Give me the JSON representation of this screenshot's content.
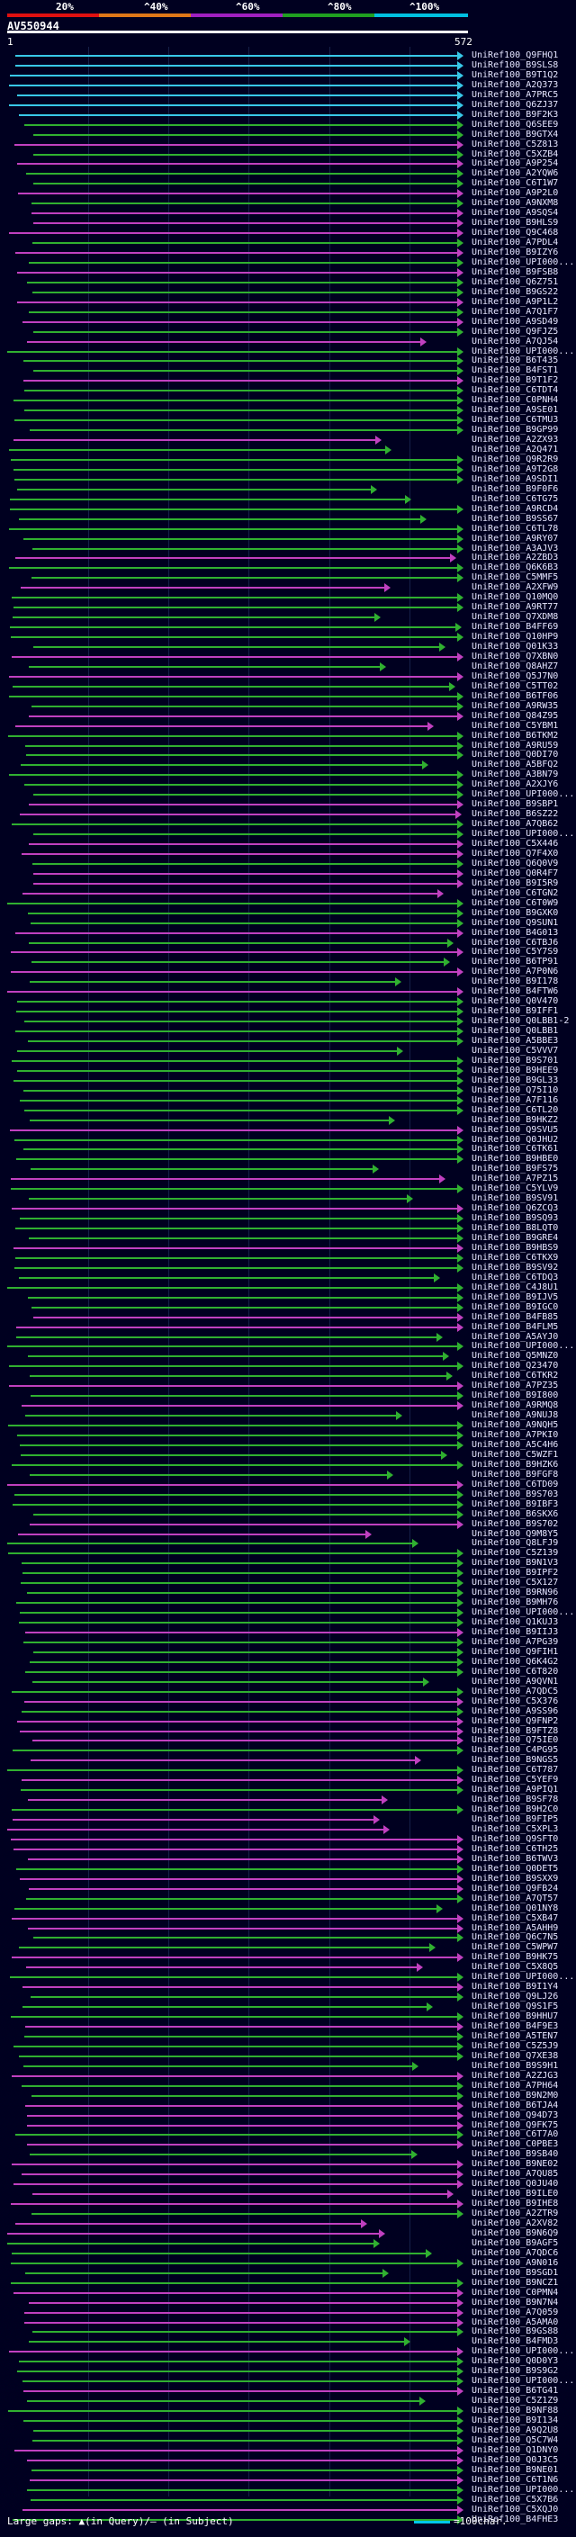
{
  "scale": {
    "ticks": [
      "20%",
      "^40%",
      "^60%",
      "^80%",
      "^100%"
    ],
    "colors": [
      "#e01010",
      "#e07818",
      "#a020c0",
      "#20a020",
      "#00c0e0"
    ]
  },
  "query": {
    "name": "AV550944",
    "start": "1",
    "end": "572"
  },
  "legend": {
    "left": "Large gaps: ▲(in Query)/– (in Subject)",
    "right": "=100char."
  },
  "hits": [
    "UniRef100_Q9FHQ1",
    "UniRef100_B9SLS8",
    "UniRef100_B9T1Q2",
    "UniRef100_A2Q373",
    "UniRef100_A7PRC5",
    "UniRef100_Q6ZJ37",
    "UniRef100_B9F2K3",
    "UniRef100_Q6SEE9",
    "UniRef100_B9GTX4",
    "UniRef100_C5Z813",
    "UniRef100_C5XZB4",
    "UniRef100_A9P254",
    "UniRef100_A2YQW6",
    "UniRef100_C6T1W7",
    "UniRef100_A9P2L0",
    "UniRef100_A9NXM8",
    "UniRef100_A9SQS4",
    "UniRef100_B9HLS9",
    "UniRef100_Q9C468",
    "UniRef100_A7PDL4",
    "UniRef100_B9IZY6",
    "UniRef100_UPI000...",
    "UniRef100_B9FSB8",
    "UniRef100_Q6Z751",
    "UniRef100_B9GS22",
    "UniRef100_A9P1L2",
    "UniRef100_A7Q1F7",
    "UniRef100_A9SD49",
    "UniRef100_Q9FJZ5",
    "UniRef100_A7QJ54",
    "UniRef100_UPI000...",
    "UniRef100_B6T435",
    "UniRef100_B4FST1",
    "UniRef100_B9T1F2",
    "UniRef100_C6TDT4",
    "UniRef100_C0PNH4",
    "UniRef100_A9SE01",
    "UniRef100_C6TMU3",
    "UniRef100_B9GP99",
    "UniRef100_A2ZX93",
    "UniRef100_A2Q471",
    "UniRef100_Q9R2R9",
    "UniRef100_A9T2G8",
    "UniRef100_A9SDI1",
    "UniRef100_B9F0F6",
    "UniRef100_C6TG75",
    "UniRef100_A9RCD4",
    "UniRef100_B9SS67",
    "UniRef100_C6TL78",
    "UniRef100_A9RY07",
    "UniRef100_A3AJV3",
    "UniRef100_A2ZBD3",
    "UniRef100_Q6K6B3",
    "UniRef100_C5MMF5",
    "UniRef100_A2XFW9",
    "UniRef100_Q10MQ0",
    "UniRef100_A9RT77",
    "UniRef100_Q7XDM8",
    "UniRef100_B4FF69",
    "UniRef100_Q10HP9",
    "UniRef100_Q01K33",
    "UniRef100_Q7XBN0",
    "UniRef100_Q8AHZ7",
    "UniRef100_Q5J7N0",
    "UniRef100_C5TT02",
    "UniRef100_B6TF06",
    "UniRef100_A9RW35",
    "UniRef100_Q84Z95",
    "UniRef100_C5YBM1",
    "UniRef100_B6TKM2",
    "UniRef100_A9RU59",
    "UniRef100_Q0DI70",
    "UniRef100_A5BFQ2",
    "UniRef100_A3BN79",
    "UniRef100_A2XJY6",
    "UniRef100_UPI000...",
    "UniRef100_B9SBP1",
    "UniRef100_B6SZ22",
    "UniRef100_A7QB62",
    "UniRef100_UPI000...",
    "UniRef100_C5X446",
    "UniRef100_Q7F4X0",
    "UniRef100_Q6Q0V9",
    "UniRef100_Q0R4F7",
    "UniRef100_B9I5R9",
    "UniRef100_C6TGN2",
    "UniRef100_C6T0W9",
    "UniRef100_B9GXK0",
    "UniRef100_Q9SUN1",
    "UniRef100_B4G013",
    "UniRef100_C6TBJ6",
    "UniRef100_C5Y7S9",
    "UniRef100_B6TP91",
    "UniRef100_A7P0N6",
    "UniRef100_B9I178",
    "UniRef100_B4FTW6",
    "UniRef100_Q0V470",
    "UniRef100_B9IFF1",
    "UniRef100_Q0LBB1-2",
    "UniRef100_Q0LBB1",
    "UniRef100_A5BBE3",
    "UniRef100_C5VVV7",
    "UniRef100_B9S701",
    "UniRef100_B9HEE9",
    "UniRef100_B9GL33",
    "UniRef100_Q75I10",
    "UniRef100_A7F116",
    "UniRef100_C6TL20",
    "UniRef100_B9HKZ2",
    "UniRef100_Q9SVU5",
    "UniRef100_Q0JHU2",
    "UniRef100_C6TK61",
    "UniRef100_B9HBE0",
    "UniRef100_B9FS75",
    "UniRef100_A7PZ15",
    "UniRef100_C5YLV9",
    "UniRef100_B9SV91",
    "UniRef100_Q6ZCQ3",
    "UniRef100_B9SQ93",
    "UniRef100_B8LQT0",
    "UniRef100_B9GRE4",
    "UniRef100_B9HBS9",
    "UniRef100_C6TKX9",
    "UniRef100_B9SV92",
    "UniRef100_C6TDQ3",
    "UniRef100_C4J8U1",
    "UniRef100_B9IJV5",
    "UniRef100_B9IGC0",
    "UniRef100_B4FB85",
    "UniRef100_B4FLM5",
    "UniRef100_A5AYJ0",
    "UniRef100_UPI000...",
    "UniRef100_Q5MNZ0",
    "UniRef100_Q23470",
    "UniRef100_C6TKR2",
    "UniRef100_A7PZ35",
    "UniRef100_B9I800",
    "UniRef100_A9RMQ8",
    "UniRef100_A9NUJ8",
    "UniRef100_A9NQH5",
    "UniRef100_A7PKI0",
    "UniRef100_A5C4H6",
    "UniRef100_C5WZF1",
    "UniRef100_B9HZK6",
    "UniRef100_B9FGF8",
    "UniRef100_C6TD09",
    "UniRef100_B9S703",
    "UniRef100_B9IBF3",
    "UniRef100_B6SKX6",
    "UniRef100_B9S702",
    "UniRef100_Q9M8Y5",
    "UniRef100_Q8LFJ9",
    "UniRef100_C5Z139",
    "UniRef100_B9N1V3",
    "UniRef100_B9IPF2",
    "UniRef100_C5X127",
    "UniRef100_B9RN96",
    "UniRef100_B9MH76",
    "UniRef100_UPI000...",
    "UniRef100_Q1KUJ3",
    "UniRef100_B9IIJ3",
    "UniRef100_A7PG39",
    "UniRef100_Q9FIH1",
    "UniRef100_Q6K4G2",
    "UniRef100_C6T820",
    "UniRef100_A9QVN1",
    "UniRef100_A7QDC5",
    "UniRef100_C5X376",
    "UniRef100_A9SS96",
    "UniRef100_Q9FNP2",
    "UniRef100_B9FTZ8",
    "UniRef100_Q75IE0",
    "UniRef100_C4PG95",
    "UniRef100_B9NGS5",
    "UniRef100_C6T787",
    "UniRef100_C5YEF9",
    "UniRef100_A9PIQ1",
    "UniRef100_B9SF78",
    "UniRef100_B9H2C0",
    "UniRef100_B9FIP5",
    "UniRef100_C5XPL3",
    "UniRef100_Q9SFT0",
    "UniRef100_C6TH25",
    "UniRef100_B6TWV3",
    "UniRef100_Q0DET5",
    "UniRef100_B9SXX9",
    "UniRef100_Q9FB24",
    "UniRef100_A7QT57",
    "UniRef100_Q01NY8",
    "UniRef100_C5XB47",
    "UniRef100_A5AHH9",
    "UniRef100_Q6C7N5",
    "UniRef100_C5WPW7",
    "UniRef100_B9HK75",
    "UniRef100_C5X8Q5",
    "UniRef100_UPI000...",
    "UniRef100_B9I1Y4",
    "UniRef100_Q9LJ26",
    "UniRef100_Q9S1F5",
    "UniRef100_B9HHU7",
    "UniRef100_B4F9E3",
    "UniRef100_A5TEN7",
    "UniRef100_C5Z5J9",
    "UniRef100_Q7XE38",
    "UniRef100_B9S9H1",
    "UniRef100_A2ZJG3",
    "UniRef100_A7PH64",
    "UniRef100_B9N2M0",
    "UniRef100_B6TJA4",
    "UniRef100_Q94D73",
    "UniRef100_Q9FK75",
    "UniRef100_C6T7A0",
    "UniRef100_C0PBE3",
    "UniRef100_B9SB40",
    "UniRef100_B9NE02",
    "UniRef100_A7QU85",
    "UniRef100_Q0JU40",
    "UniRef100_B9ILE0",
    "UniRef100_B9IHE8",
    "UniRef100_A2ZTR9",
    "UniRef100_A2XV82",
    "UniRef100_B9N6Q9",
    "UniRef100_B9AGF5",
    "UniRef100_A7QDC6",
    "UniRef100_A9N016",
    "UniRef100_B9SGD1",
    "UniRef100_B9NCZ1",
    "UniRef100_C0PMN4",
    "UniRef100_B9N7N4",
    "UniRef100_A7Q059",
    "UniRef100_A5AMA0",
    "UniRef100_B9GS88",
    "UniRef100_B4FMD3",
    "UniRef100_UPI000...",
    "UniRef100_Q0D0Y3",
    "UniRef100_B9S9G2",
    "UniRef100_UPI000...",
    "UniRef100_B6TG41",
    "UniRef100_C5Z1Z9",
    "UniRef100_B9NF88",
    "UniRef100_B9I134",
    "UniRef100_A9Q2U8",
    "UniRef100_Q5C7W4",
    "UniRef100_Q1DNY0",
    "UniRef100_Q0J3C5",
    "UniRef100_B9NE01",
    "UniRef100_C6T1N6",
    "UniRef100_UPI000...",
    "UniRef100_C5X7B6",
    "UniRef100_C5XQJ0",
    "UniRef100_B4FHE3"
  ]
}
